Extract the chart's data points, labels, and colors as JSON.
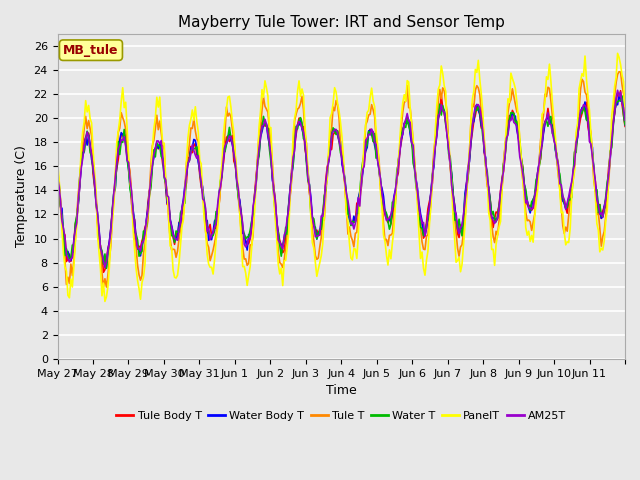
{
  "title": "Mayberry Tule Tower: IRT and Sensor Temp",
  "xlabel": "Time",
  "ylabel": "Temperature (C)",
  "ylim": [
    0,
    27
  ],
  "yticks": [
    0,
    2,
    4,
    6,
    8,
    10,
    12,
    14,
    16,
    18,
    20,
    22,
    24,
    26
  ],
  "x_labels": [
    "May 27",
    "May 28",
    "May 29",
    "May 30",
    "May 31",
    "Jun 1",
    "Jun 2",
    "Jun 3",
    "Jun 4",
    "Jun 5",
    "Jun 6",
    "Jun 7",
    "Jun 8",
    "Jun 9",
    "Jun 10",
    "Jun 11",
    ""
  ],
  "legend_labels": [
    "Tule Body T",
    "Water Body T",
    "Tule T",
    "Water T",
    "PanelT",
    "AM25T"
  ],
  "legend_colors": [
    "#ff0000",
    "#0000ff",
    "#ff8800",
    "#00bb00",
    "#ffff00",
    "#9900cc"
  ],
  "line_colors": [
    "#ff0000",
    "#0000ff",
    "#ff8800",
    "#00bb00",
    "#ffff00",
    "#9900cc"
  ],
  "annotation_text": "MB_tule",
  "annotation_color": "#990000",
  "annotation_bg": "#ffff99",
  "fig_bg_color": "#e8e8e8",
  "plot_bg_color": "#e8e8e8",
  "grid_color": "#ffffff",
  "title_fontsize": 11,
  "axis_fontsize": 9,
  "tick_fontsize": 8
}
